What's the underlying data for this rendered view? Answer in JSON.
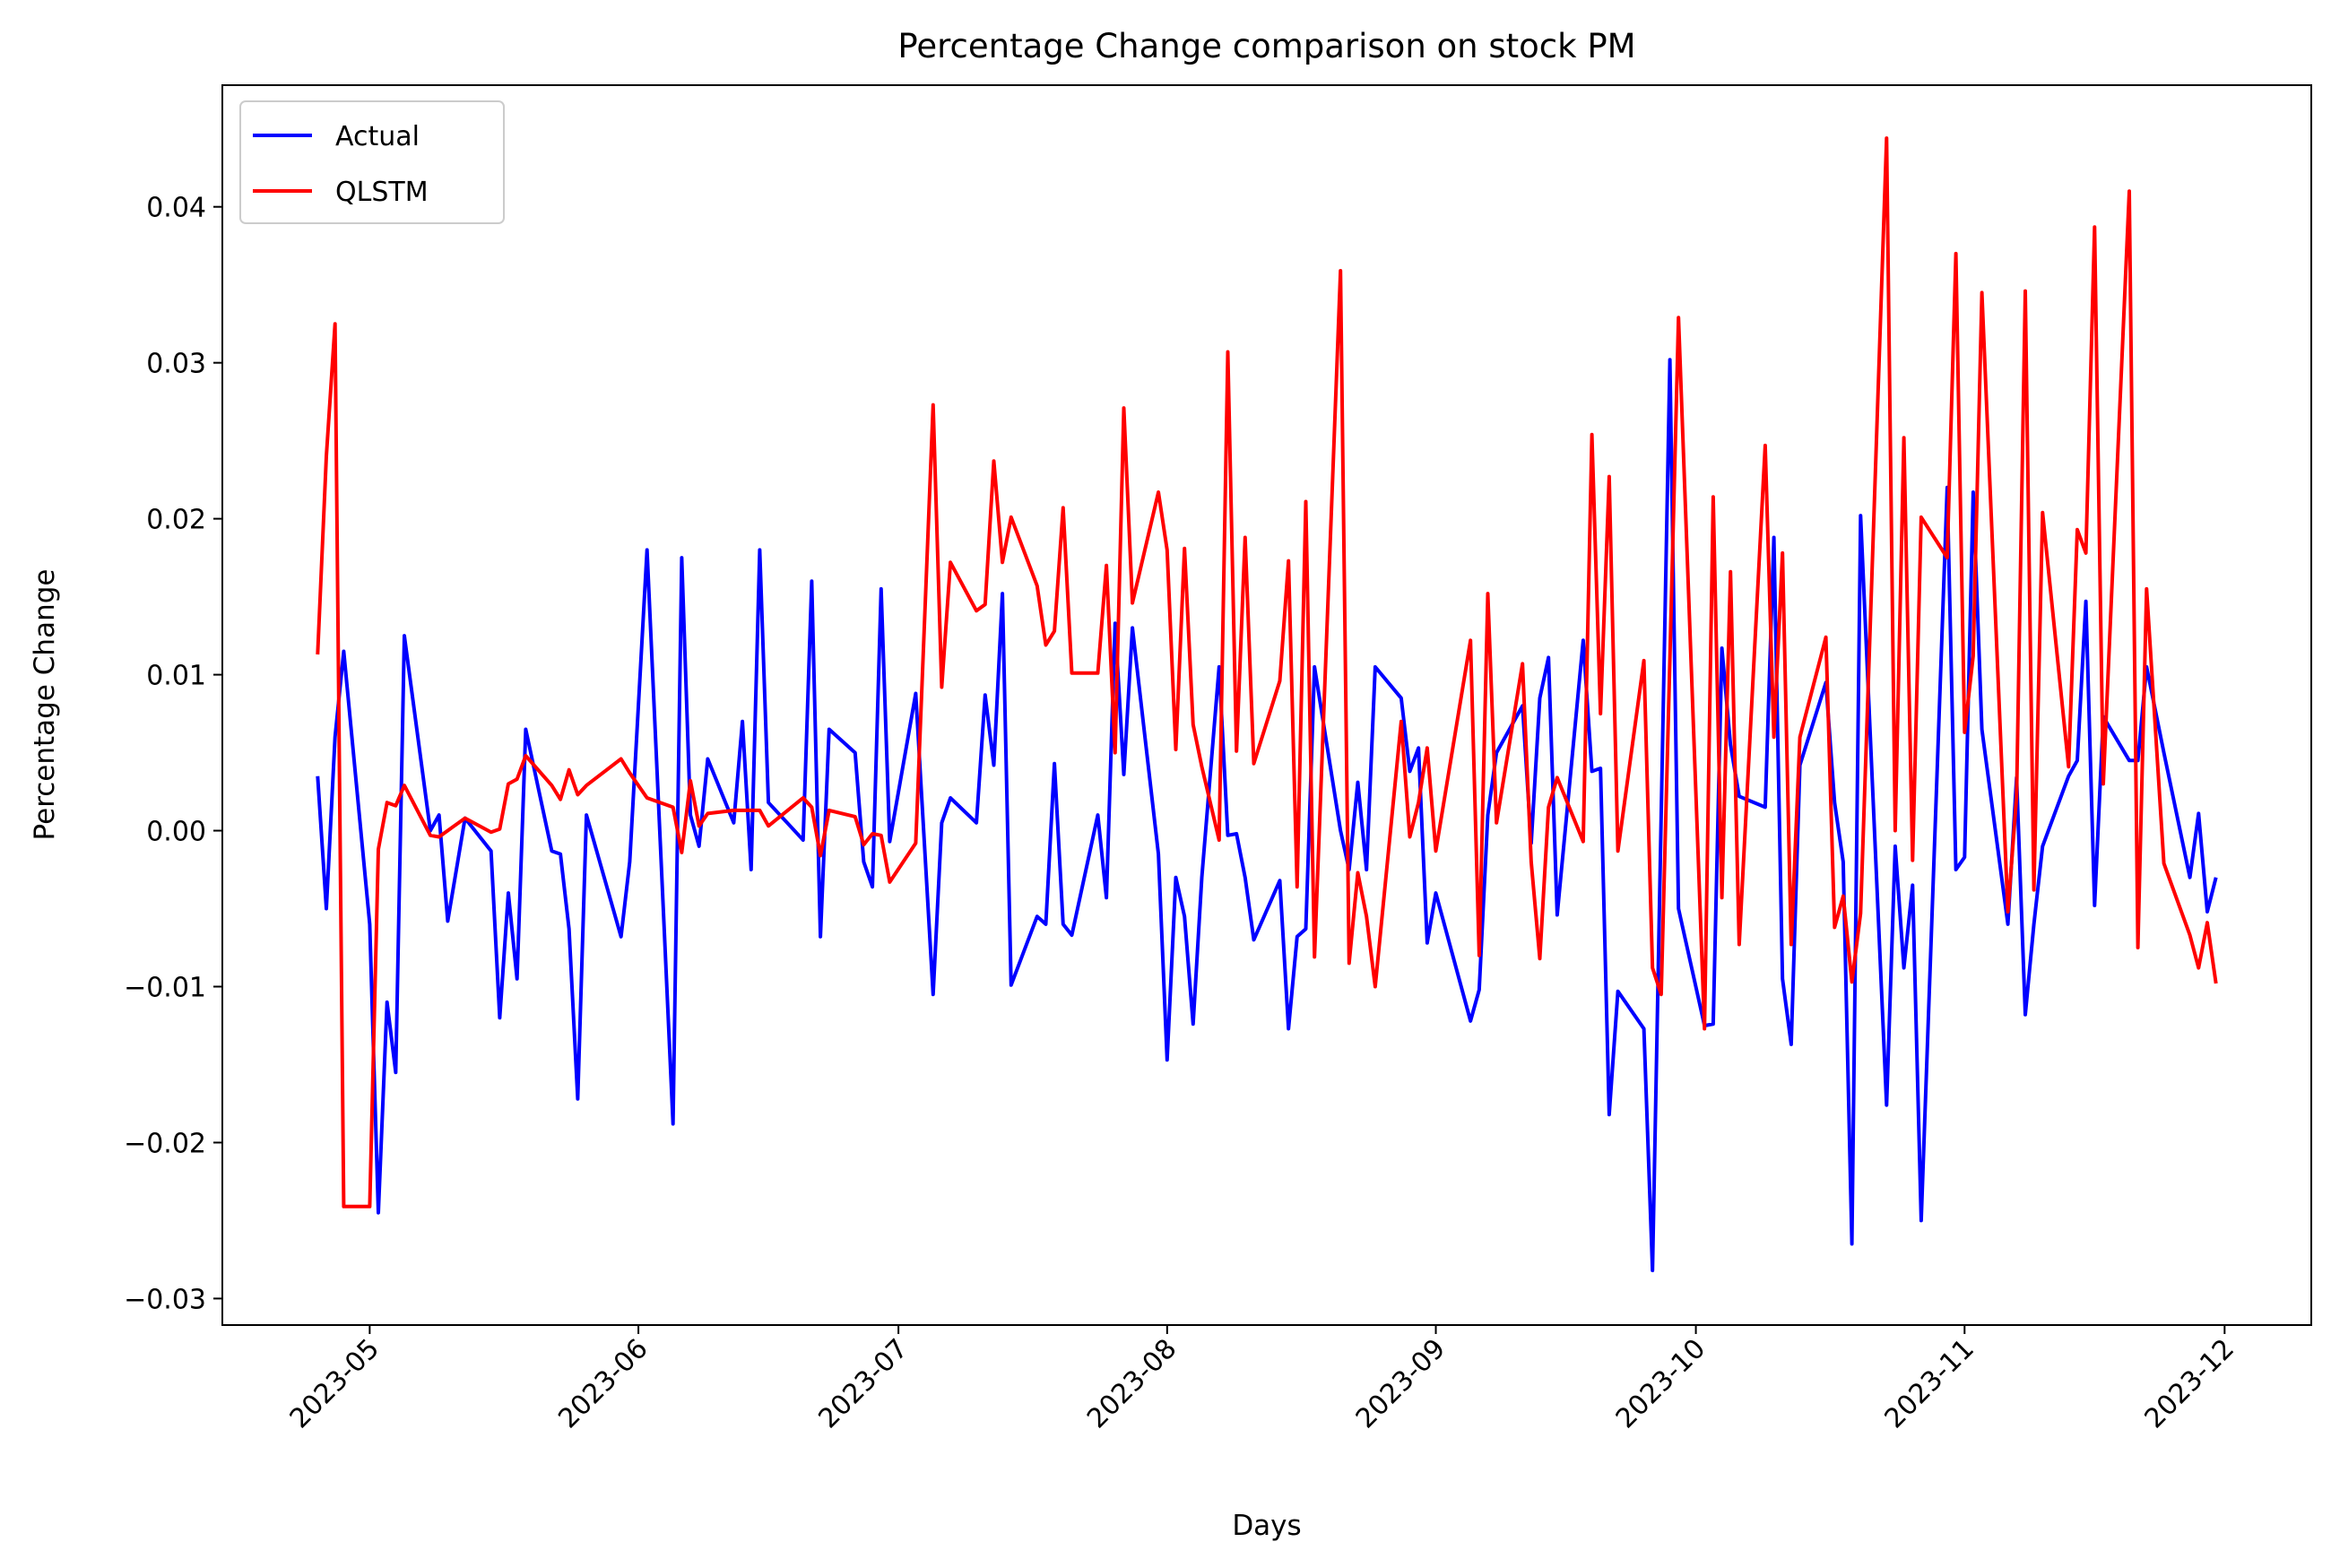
{
  "chart_data": {
    "type": "line",
    "title": "Percentage Change comparison on stock PM",
    "x_label": "Days",
    "y_label": "Percentage Change",
    "legend": "upper left",
    "grid": false,
    "xlim": [
      "2023-04-14",
      "2023-12-11"
    ],
    "xticks": [
      {
        "value": "2023-05-01",
        "label": "2023-05"
      },
      {
        "value": "2023-06-01",
        "label": "2023-06"
      },
      {
        "value": "2023-07-01",
        "label": "2023-07"
      },
      {
        "value": "2023-08-01",
        "label": "2023-08"
      },
      {
        "value": "2023-09-01",
        "label": "2023-09"
      },
      {
        "value": "2023-10-01",
        "label": "2023-10"
      },
      {
        "value": "2023-11-01",
        "label": "2023-11"
      },
      {
        "value": "2023-12-01",
        "label": "2023-12"
      }
    ],
    "ylim": [
      -0.0317,
      0.0478
    ],
    "yticks": [
      {
        "value": -0.03,
        "label": "−0.03"
      },
      {
        "value": -0.02,
        "label": "−0.02"
      },
      {
        "value": -0.01,
        "label": "−0.01"
      },
      {
        "value": 0,
        "label": "0.00"
      },
      0.01,
      0.02,
      0.03,
      0.04
    ],
    "x": [
      "2023-04-25",
      "2023-04-26",
      "2023-04-27",
      "2023-04-28",
      "2023-05-01",
      "2023-05-02",
      "2023-05-03",
      "2023-05-04",
      "2023-05-05",
      "2023-05-08",
      "2023-05-09",
      "2023-05-10",
      "2023-05-12",
      "2023-05-15",
      "2023-05-16",
      "2023-05-17",
      "2023-05-18",
      "2023-05-19",
      "2023-05-22",
      "2023-05-23",
      "2023-05-24",
      "2023-05-25",
      "2023-05-26",
      "2023-05-30",
      "2023-05-31",
      "2023-06-02",
      "2023-06-05",
      "2023-06-06",
      "2023-06-07",
      "2023-06-08",
      "2023-06-09",
      "2023-06-12",
      "2023-06-13",
      "2023-06-14",
      "2023-06-15",
      "2023-06-16",
      "2023-06-20",
      "2023-06-21",
      "2023-06-22",
      "2023-06-23",
      "2023-06-26",
      "2023-06-27",
      "2023-06-28",
      "2023-06-29",
      "2023-06-30",
      "2023-07-03",
      "2023-07-05",
      "2023-07-06",
      "2023-07-07",
      "2023-07-10",
      "2023-07-11",
      "2023-07-12",
      "2023-07-13",
      "2023-07-14",
      "2023-07-17",
      "2023-07-18",
      "2023-07-19",
      "2023-07-20",
      "2023-07-21",
      "2023-07-24",
      "2023-07-25",
      "2023-07-26",
      "2023-07-27",
      "2023-07-28",
      "2023-07-31",
      "2023-08-01",
      "2023-08-02",
      "2023-08-03",
      "2023-08-04",
      "2023-08-05",
      "2023-08-07",
      "2023-08-08",
      "2023-08-09",
      "2023-08-10",
      "2023-08-11",
      "2023-08-14",
      "2023-08-15",
      "2023-08-16",
      "2023-08-17",
      "2023-08-18",
      "2023-08-21",
      "2023-08-22",
      "2023-08-23",
      "2023-08-24",
      "2023-08-25",
      "2023-08-28",
      "2023-08-29",
      "2023-08-30",
      "2023-08-31",
      "2023-09-01",
      "2023-09-05",
      "2023-09-06",
      "2023-09-07",
      "2023-09-08",
      "2023-09-11",
      "2023-09-12",
      "2023-09-13",
      "2023-09-14",
      "2023-09-15",
      "2023-09-18",
      "2023-09-19",
      "2023-09-20",
      "2023-09-21",
      "2023-09-22",
      "2023-09-25",
      "2023-09-26",
      "2023-09-27",
      "2023-09-28",
      "2023-09-29",
      "2023-10-02",
      "2023-10-03",
      "2023-10-04",
      "2023-10-05",
      "2023-10-06",
      "2023-10-09",
      "2023-10-10",
      "2023-10-11",
      "2023-10-12",
      "2023-10-13",
      "2023-10-16",
      "2023-10-17",
      "2023-10-18",
      "2023-10-19",
      "2023-10-20",
      "2023-10-23",
      "2023-10-24",
      "2023-10-25",
      "2023-10-26",
      "2023-10-27",
      "2023-10-30",
      "2023-10-31",
      "2023-11-01",
      "2023-11-02",
      "2023-11-03",
      "2023-11-06",
      "2023-11-07",
      "2023-11-08",
      "2023-11-09",
      "2023-11-10",
      "2023-11-13",
      "2023-11-14",
      "2023-11-15",
      "2023-11-16",
      "2023-11-17",
      "2023-11-20",
      "2023-11-21",
      "2023-11-22",
      "2023-11-24",
      "2023-11-27",
      "2023-11-28",
      "2023-11-29",
      "2023-11-30"
    ],
    "series": [
      {
        "name": "Actual",
        "color": "#0000ff",
        "values": [
          0.0035,
          -0.005,
          0.006,
          0.0115,
          -0.006,
          -0.0245,
          -0.011,
          -0.0155,
          0.0125,
          0.0,
          0.001,
          -0.0058,
          0.0008,
          -0.0013,
          -0.012,
          -0.004,
          -0.0095,
          0.0065,
          -0.0013,
          -0.0015,
          -0.0063,
          -0.0172,
          0.001,
          -0.0068,
          -0.002,
          0.018,
          -0.0188,
          0.0175,
          0.001,
          -0.001,
          0.0046,
          0.0005,
          0.007,
          -0.0025,
          0.018,
          0.0018,
          -0.0006,
          0.016,
          -0.0068,
          0.0065,
          0.005,
          -0.002,
          -0.0036,
          0.0155,
          -0.0007,
          0.0088,
          -0.0105,
          0.0005,
          0.0021,
          0.0005,
          0.0087,
          0.0042,
          0.0152,
          -0.0099,
          -0.0055,
          -0.006,
          0.0043,
          -0.006,
          -0.0067,
          0.001,
          -0.0043,
          0.0133,
          0.0036,
          0.013,
          -0.0015,
          -0.0147,
          -0.003,
          -0.0055,
          -0.0124,
          -0.003,
          0.0105,
          -0.0003,
          -0.0002,
          -0.003,
          -0.007,
          -0.0032,
          -0.0127,
          -0.0068,
          -0.0063,
          0.0105,
          0.0,
          -0.0025,
          0.0031,
          -0.0025,
          0.0105,
          0.0085,
          0.0038,
          0.0053,
          -0.0072,
          -0.004,
          -0.0122,
          -0.0102,
          0.001,
          0.005,
          0.008,
          -0.0008,
          0.0085,
          0.0111,
          -0.0054,
          0.0122,
          0.0038,
          0.004,
          -0.0182,
          -0.0103,
          -0.0127,
          -0.0282,
          0.001,
          0.0302,
          -0.005,
          -0.0125,
          -0.0124,
          0.0117,
          0.0055,
          0.0022,
          0.0015,
          0.0188,
          -0.0095,
          -0.0137,
          0.0042,
          0.0095,
          0.0018,
          -0.002,
          -0.0265,
          0.0202,
          -0.0176,
          -0.001,
          -0.0088,
          -0.0035,
          -0.025,
          0.022,
          -0.0025,
          -0.0017,
          0.0217,
          0.0065,
          -0.006,
          0.0034,
          -0.0118,
          -0.006,
          -0.001,
          0.0035,
          0.0045,
          0.0147,
          -0.0048,
          0.0073,
          0.0045,
          0.0045,
          0.0105,
          0.005,
          -0.003,
          0.0011,
          -0.0052,
          -0.003
        ]
      },
      {
        "name": "QLSTM",
        "color": "#ff0000",
        "values": [
          0.0113,
          0.024,
          0.0325,
          -0.0241,
          -0.0241,
          -0.0012,
          0.0018,
          0.0016,
          0.0029,
          -0.0003,
          -0.0004,
          0.0,
          0.0008,
          -0.0001,
          0.0001,
          0.003,
          0.0033,
          0.0048,
          0.0029,
          0.002,
          0.0039,
          0.0023,
          0.0029,
          0.0046,
          0.0037,
          0.0021,
          0.0015,
          -0.0014,
          0.0032,
          0.0003,
          0.0011,
          0.0013,
          0.0013,
          0.0013,
          0.0013,
          0.0003,
          0.0021,
          0.0015,
          -0.0016,
          0.0013,
          0.0009,
          -0.0009,
          -0.0002,
          -0.0003,
          -0.0033,
          -0.0008,
          0.0273,
          0.0092,
          0.0172,
          0.0141,
          0.0145,
          0.0237,
          0.0172,
          0.0201,
          0.0157,
          0.0119,
          0.0128,
          0.0207,
          0.0101,
          0.0101,
          0.017,
          0.005,
          0.0271,
          0.0146,
          0.0217,
          0.018,
          0.0052,
          0.0181,
          0.0068,
          0.0041,
          -0.0006,
          0.0307,
          0.0051,
          0.0188,
          0.0043,
          0.0096,
          0.0173,
          -0.0036,
          0.0211,
          -0.0081,
          0.0359,
          -0.0085,
          -0.0027,
          -0.0055,
          -0.01,
          0.007,
          -0.0004,
          0.0018,
          0.0053,
          -0.0013,
          0.0122,
          -0.008,
          0.0152,
          0.0005,
          0.0107,
          -0.002,
          -0.0082,
          0.0015,
          0.0034,
          -0.0007,
          0.0254,
          0.0075,
          0.0227,
          -0.0013,
          0.0109,
          -0.0088,
          -0.0105,
          0.011,
          0.0329,
          -0.0127,
          0.0214,
          -0.0043,
          0.0166,
          -0.0073,
          0.0247,
          0.006,
          0.0178,
          -0.0073,
          0.006,
          0.0124,
          -0.0062,
          -0.0042,
          -0.0097,
          -0.0053,
          0.0444,
          0.0,
          0.0252,
          -0.0019,
          0.0201,
          0.0175,
          0.037,
          0.0063,
          0.0112,
          0.0345,
          -0.0052,
          0.0022,
          0.0346,
          -0.0038,
          0.0204,
          0.0041,
          0.0193,
          0.0178,
          0.0387,
          0.003,
          0.041,
          -0.0075,
          0.0155,
          -0.0021,
          -0.0067,
          -0.0088,
          -0.0059,
          -0.0098
        ]
      }
    ]
  }
}
